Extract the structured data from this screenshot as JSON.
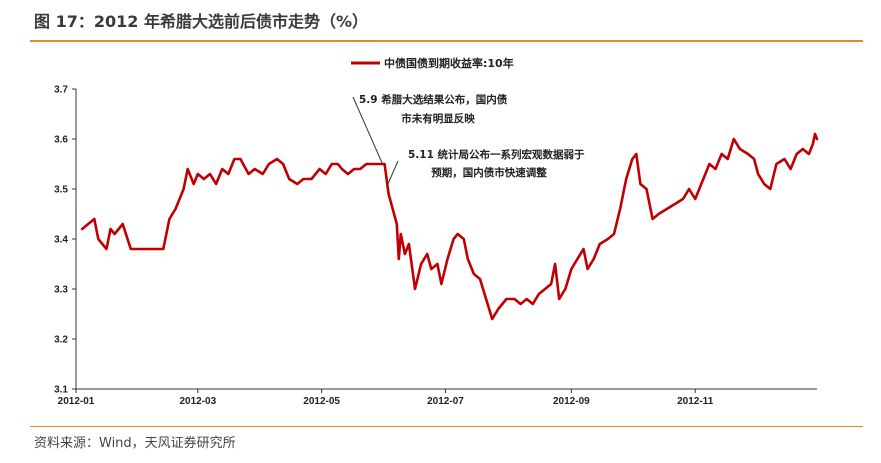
{
  "figure": {
    "title": "图 17：2012 年希腊大选前后债市走势（%）",
    "source": "资料来源：Wind，天风证券研究所",
    "colors": {
      "accent": "#e08a2c",
      "series": "#c00000",
      "axis": "#333333"
    }
  },
  "chart_data": {
    "type": "line",
    "title": "",
    "xlabel": "",
    "ylabel": "",
    "ylim": [
      3.1,
      3.7
    ],
    "yticks": [
      "3.1",
      "3.2",
      "3.3",
      "3.4",
      "3.5",
      "3.6",
      "3.7"
    ],
    "xticks": [
      "2012-01",
      "2012-03",
      "2012-05",
      "2012-07",
      "2012-09",
      "2012-11"
    ],
    "xrange": [
      "2012-01-01",
      "2012-12-31"
    ],
    "grid": false,
    "legend": "top-center",
    "series": [
      {
        "name": "中债国债到期收益率:10年",
        "points": [
          [
            "2012-01-04",
            3.42
          ],
          [
            "2012-01-07",
            3.43
          ],
          [
            "2012-01-10",
            3.44
          ],
          [
            "2012-01-12",
            3.4
          ],
          [
            "2012-01-16",
            3.38
          ],
          [
            "2012-01-18",
            3.42
          ],
          [
            "2012-01-20",
            3.41
          ],
          [
            "2012-01-24",
            3.43
          ],
          [
            "2012-01-28",
            3.38
          ],
          [
            "2012-02-01",
            3.38
          ],
          [
            "2012-02-05",
            3.38
          ],
          [
            "2012-02-09",
            3.38
          ],
          [
            "2012-02-13",
            3.38
          ],
          [
            "2012-02-16",
            3.44
          ],
          [
            "2012-02-19",
            3.46
          ],
          [
            "2012-02-23",
            3.5
          ],
          [
            "2012-02-25",
            3.54
          ],
          [
            "2012-02-28",
            3.51
          ],
          [
            "2012-03-01",
            3.53
          ],
          [
            "2012-03-04",
            3.52
          ],
          [
            "2012-03-07",
            3.53
          ],
          [
            "2012-03-10",
            3.51
          ],
          [
            "2012-03-13",
            3.54
          ],
          [
            "2012-03-16",
            3.53
          ],
          [
            "2012-03-19",
            3.56
          ],
          [
            "2012-03-22",
            3.56
          ],
          [
            "2012-03-26",
            3.53
          ],
          [
            "2012-03-29",
            3.54
          ],
          [
            "2012-04-02",
            3.53
          ],
          [
            "2012-04-05",
            3.55
          ],
          [
            "2012-04-09",
            3.56
          ],
          [
            "2012-04-12",
            3.55
          ],
          [
            "2012-04-15",
            3.52
          ],
          [
            "2012-04-19",
            3.51
          ],
          [
            "2012-04-22",
            3.52
          ],
          [
            "2012-04-26",
            3.52
          ],
          [
            "2012-04-30",
            3.54
          ],
          [
            "2012-05-03",
            3.53
          ],
          [
            "2012-05-06",
            3.55
          ],
          [
            "2012-05-09",
            3.55
          ],
          [
            "2012-05-11",
            3.54
          ],
          [
            "2012-05-14",
            3.53
          ],
          [
            "2012-05-17",
            3.54
          ],
          [
            "2012-05-20",
            3.54
          ],
          [
            "2012-05-23",
            3.55
          ],
          [
            "2012-05-26",
            3.55
          ],
          [
            "2012-05-29",
            3.55
          ],
          [
            "2012-06-01",
            3.55
          ],
          [
            "2012-06-02",
            3.52
          ],
          [
            "2012-06-03",
            3.49
          ],
          [
            "2012-06-05",
            3.46
          ],
          [
            "2012-06-07",
            3.43
          ],
          [
            "2012-06-08",
            3.36
          ],
          [
            "2012-06-09",
            3.41
          ],
          [
            "2012-06-11",
            3.37
          ],
          [
            "2012-06-13",
            3.39
          ],
          [
            "2012-06-16",
            3.3
          ],
          [
            "2012-06-19",
            3.35
          ],
          [
            "2012-06-22",
            3.37
          ],
          [
            "2012-06-24",
            3.34
          ],
          [
            "2012-06-27",
            3.35
          ],
          [
            "2012-06-29",
            3.31
          ],
          [
            "2012-07-02",
            3.36
          ],
          [
            "2012-07-05",
            3.4
          ],
          [
            "2012-07-07",
            3.41
          ],
          [
            "2012-07-10",
            3.4
          ],
          [
            "2012-07-12",
            3.36
          ],
          [
            "2012-07-15",
            3.33
          ],
          [
            "2012-07-18",
            3.32
          ],
          [
            "2012-07-21",
            3.28
          ],
          [
            "2012-07-24",
            3.24
          ],
          [
            "2012-07-27",
            3.26
          ],
          [
            "2012-07-31",
            3.28
          ],
          [
            "2012-08-04",
            3.28
          ],
          [
            "2012-08-07",
            3.27
          ],
          [
            "2012-08-10",
            3.28
          ],
          [
            "2012-08-13",
            3.27
          ],
          [
            "2012-08-16",
            3.29
          ],
          [
            "2012-08-19",
            3.3
          ],
          [
            "2012-08-22",
            3.31
          ],
          [
            "2012-08-24",
            3.35
          ],
          [
            "2012-08-26",
            3.28
          ],
          [
            "2012-08-29",
            3.3
          ],
          [
            "2012-09-01",
            3.34
          ],
          [
            "2012-09-04",
            3.36
          ],
          [
            "2012-09-07",
            3.38
          ],
          [
            "2012-09-09",
            3.34
          ],
          [
            "2012-09-12",
            3.36
          ],
          [
            "2012-09-15",
            3.39
          ],
          [
            "2012-09-19",
            3.4
          ],
          [
            "2012-09-22",
            3.41
          ],
          [
            "2012-09-25",
            3.46
          ],
          [
            "2012-09-28",
            3.52
          ],
          [
            "2012-10-01",
            3.56
          ],
          [
            "2012-10-03",
            3.57
          ],
          [
            "2012-10-05",
            3.51
          ],
          [
            "2012-10-08",
            3.5
          ],
          [
            "2012-10-11",
            3.44
          ],
          [
            "2012-10-14",
            3.45
          ],
          [
            "2012-10-18",
            3.46
          ],
          [
            "2012-10-22",
            3.47
          ],
          [
            "2012-10-26",
            3.48
          ],
          [
            "2012-10-29",
            3.5
          ],
          [
            "2012-11-01",
            3.48
          ],
          [
            "2012-11-05",
            3.52
          ],
          [
            "2012-11-08",
            3.55
          ],
          [
            "2012-11-11",
            3.54
          ],
          [
            "2012-11-14",
            3.57
          ],
          [
            "2012-11-17",
            3.56
          ],
          [
            "2012-11-20",
            3.6
          ],
          [
            "2012-11-23",
            3.58
          ],
          [
            "2012-11-27",
            3.57
          ],
          [
            "2012-11-30",
            3.56
          ],
          [
            "2012-12-02",
            3.53
          ],
          [
            "2012-12-05",
            3.51
          ],
          [
            "2012-12-08",
            3.5
          ],
          [
            "2012-12-11",
            3.55
          ],
          [
            "2012-12-15",
            3.56
          ],
          [
            "2012-12-18",
            3.54
          ],
          [
            "2012-12-21",
            3.57
          ],
          [
            "2012-12-24",
            3.58
          ],
          [
            "2012-12-27",
            3.57
          ],
          [
            "2012-12-29",
            3.59
          ],
          [
            "2012-12-30",
            3.61
          ],
          [
            "2012-12-31",
            3.6
          ]
        ]
      }
    ],
    "annotations": [
      {
        "lines": [
          "5.9 希腊大选结果公布，国内债",
          "市未有明显反映"
        ],
        "date": "2012-05-31",
        "y": 3.55
      },
      {
        "lines": [
          "5.11 统计局公布一系列宏观数据弱于",
          "预期，国内债市快速调整"
        ],
        "date": "2012-06-02",
        "y": 3.5
      }
    ]
  }
}
